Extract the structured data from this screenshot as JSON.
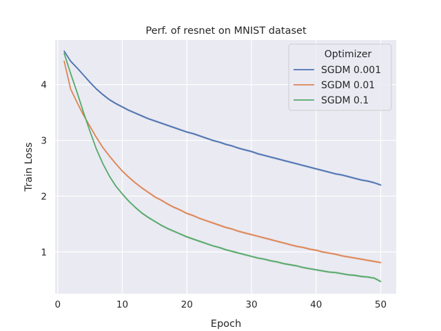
{
  "chart_data": {
    "type": "line",
    "title": "Perf. of resnet on MNIST dataset",
    "xlabel": "Epoch",
    "ylabel": "Train Loss",
    "xlim": [
      -0.4,
      52.4
    ],
    "ylim": [
      0.25,
      4.8
    ],
    "xticks": [
      0,
      10,
      20,
      30,
      40,
      50
    ],
    "yticks": [
      1,
      2,
      3,
      4
    ],
    "grid": true,
    "background": "#eaeaf2",
    "legend": {
      "title": "Optimizer",
      "placement": "top-right"
    },
    "x": [
      1,
      2,
      3,
      4,
      5,
      6,
      7,
      8,
      9,
      10,
      11,
      12,
      13,
      14,
      15,
      16,
      17,
      18,
      19,
      20,
      21,
      22,
      23,
      24,
      25,
      26,
      27,
      28,
      29,
      30,
      31,
      32,
      33,
      34,
      35,
      36,
      37,
      38,
      39,
      40,
      41,
      42,
      43,
      44,
      45,
      46,
      47,
      48,
      49,
      50
    ],
    "series": [
      {
        "name": "SGDM 0.001",
        "color": "#4c72b0",
        "values": [
          4.6,
          4.42,
          4.3,
          4.17,
          4.04,
          3.92,
          3.82,
          3.73,
          3.66,
          3.6,
          3.54,
          3.49,
          3.44,
          3.39,
          3.35,
          3.31,
          3.27,
          3.23,
          3.19,
          3.15,
          3.12,
          3.08,
          3.04,
          3.0,
          2.97,
          2.93,
          2.9,
          2.86,
          2.83,
          2.8,
          2.76,
          2.73,
          2.7,
          2.67,
          2.64,
          2.61,
          2.58,
          2.55,
          2.52,
          2.49,
          2.46,
          2.43,
          2.4,
          2.38,
          2.35,
          2.32,
          2.29,
          2.27,
          2.24,
          2.2
        ]
      },
      {
        "name": "SGDM 0.01",
        "color": "#dd8452",
        "values": [
          4.42,
          3.92,
          3.68,
          3.45,
          3.25,
          3.05,
          2.87,
          2.72,
          2.58,
          2.45,
          2.34,
          2.24,
          2.15,
          2.07,
          1.99,
          1.93,
          1.86,
          1.8,
          1.75,
          1.69,
          1.65,
          1.6,
          1.56,
          1.52,
          1.48,
          1.44,
          1.41,
          1.37,
          1.34,
          1.31,
          1.28,
          1.25,
          1.22,
          1.19,
          1.16,
          1.13,
          1.1,
          1.08,
          1.05,
          1.03,
          1.0,
          0.98,
          0.96,
          0.93,
          0.91,
          0.89,
          0.87,
          0.85,
          0.83,
          0.81
        ]
      },
      {
        "name": "SGDM 0.1",
        "color": "#55a868",
        "values": [
          4.56,
          4.2,
          3.86,
          3.5,
          3.16,
          2.84,
          2.58,
          2.36,
          2.18,
          2.04,
          1.91,
          1.8,
          1.7,
          1.62,
          1.55,
          1.48,
          1.42,
          1.37,
          1.32,
          1.27,
          1.23,
          1.19,
          1.15,
          1.11,
          1.08,
          1.04,
          1.01,
          0.98,
          0.95,
          0.92,
          0.89,
          0.87,
          0.84,
          0.82,
          0.79,
          0.77,
          0.75,
          0.72,
          0.7,
          0.68,
          0.66,
          0.64,
          0.63,
          0.61,
          0.59,
          0.58,
          0.56,
          0.55,
          0.53,
          0.47
        ]
      }
    ]
  }
}
